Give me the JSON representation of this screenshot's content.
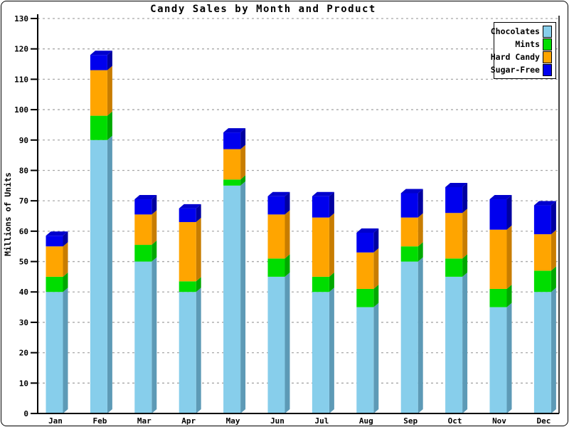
{
  "title": "Candy Sales by Month and Product",
  "chart_data": {
    "type": "bar",
    "stacked": true,
    "style": "3d-bevel",
    "title": "Candy Sales by Month and Product",
    "ylabel": "Millions of Units",
    "xlabel": "",
    "x": [
      "Jan",
      "Feb",
      "Mar",
      "Apr",
      "May",
      "Jun",
      "Jul",
      "Aug",
      "Sep",
      "Oct",
      "Nov",
      "Dec"
    ],
    "ylim": [
      0,
      130
    ],
    "yticks": [
      0,
      10,
      20,
      30,
      40,
      50,
      60,
      70,
      80,
      90,
      100,
      110,
      120,
      130
    ],
    "grid": "horizontal-dashed",
    "grid_color": "#a8a8a8",
    "axis_color": "#000000",
    "background_color": "#ffffff",
    "legend_position": "top-right",
    "series": [
      {
        "name": "Chocolates",
        "color": "#87CEEB",
        "side_color": "#5d9ab6",
        "top_color": "#79b9d3",
        "values": [
          40,
          90,
          50,
          40,
          75,
          45,
          40,
          35,
          50,
          45,
          35,
          40
        ]
      },
      {
        "name": "Mints",
        "color": "#00dd00",
        "side_color": "#00a800",
        "top_color": "#00c400",
        "values": [
          5,
          8,
          5.5,
          3.5,
          2,
          6,
          5,
          6,
          5,
          6,
          6,
          7
        ]
      },
      {
        "name": "Hard Candy",
        "color": "#ffa500",
        "side_color": "#c87d00",
        "top_color": "#e29200",
        "values": [
          10,
          15,
          10,
          19.5,
          10,
          14.5,
          19.5,
          12,
          9.5,
          15,
          19.5,
          12
        ]
      },
      {
        "name": "Sugar-Free",
        "color": "#0000ee",
        "side_color": "#0000a0",
        "top_color": "#0000cc",
        "values": [
          3.5,
          5,
          5,
          4.5,
          5.5,
          6,
          7,
          6.5,
          8,
          8.5,
          10,
          9.5
        ]
      }
    ],
    "totals": [
      58.5,
      118,
      70.5,
      67.5,
      92.5,
      71.5,
      71.5,
      59.5,
      72.5,
      74.5,
      70.5,
      68.5
    ]
  }
}
